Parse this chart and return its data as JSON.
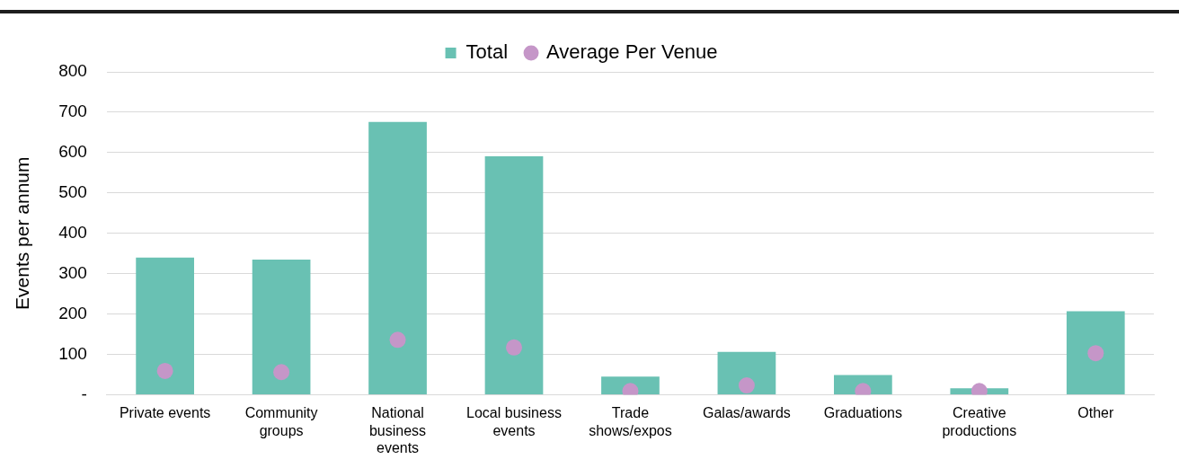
{
  "chart_data": {
    "type": "bar",
    "ylabel": "Events per annum",
    "categories": [
      "Private events",
      "Community groups",
      "National business events",
      "Local business events",
      "Trade shows/expos",
      "Galas/awards",
      "Graduations",
      "Creative productions",
      "Other"
    ],
    "series": [
      {
        "name": "Total",
        "color": "#69c1b3",
        "values": [
          340,
          335,
          676,
          591,
          45,
          106,
          49,
          16,
          207
        ]
      },
      {
        "name": "Average Per Venue",
        "type": "scatter",
        "color": "#c596c8",
        "values": [
          59,
          56,
          136,
          117,
          9,
          23,
          9,
          9,
          103
        ]
      }
    ],
    "ylim": [
      0,
      800
    ],
    "yticks": [
      {
        "value": 0,
        "label": "-"
      },
      100,
      200,
      300,
      400,
      500,
      600,
      700,
      800
    ],
    "grid": "y",
    "legend": "top",
    "marker": "circle"
  }
}
